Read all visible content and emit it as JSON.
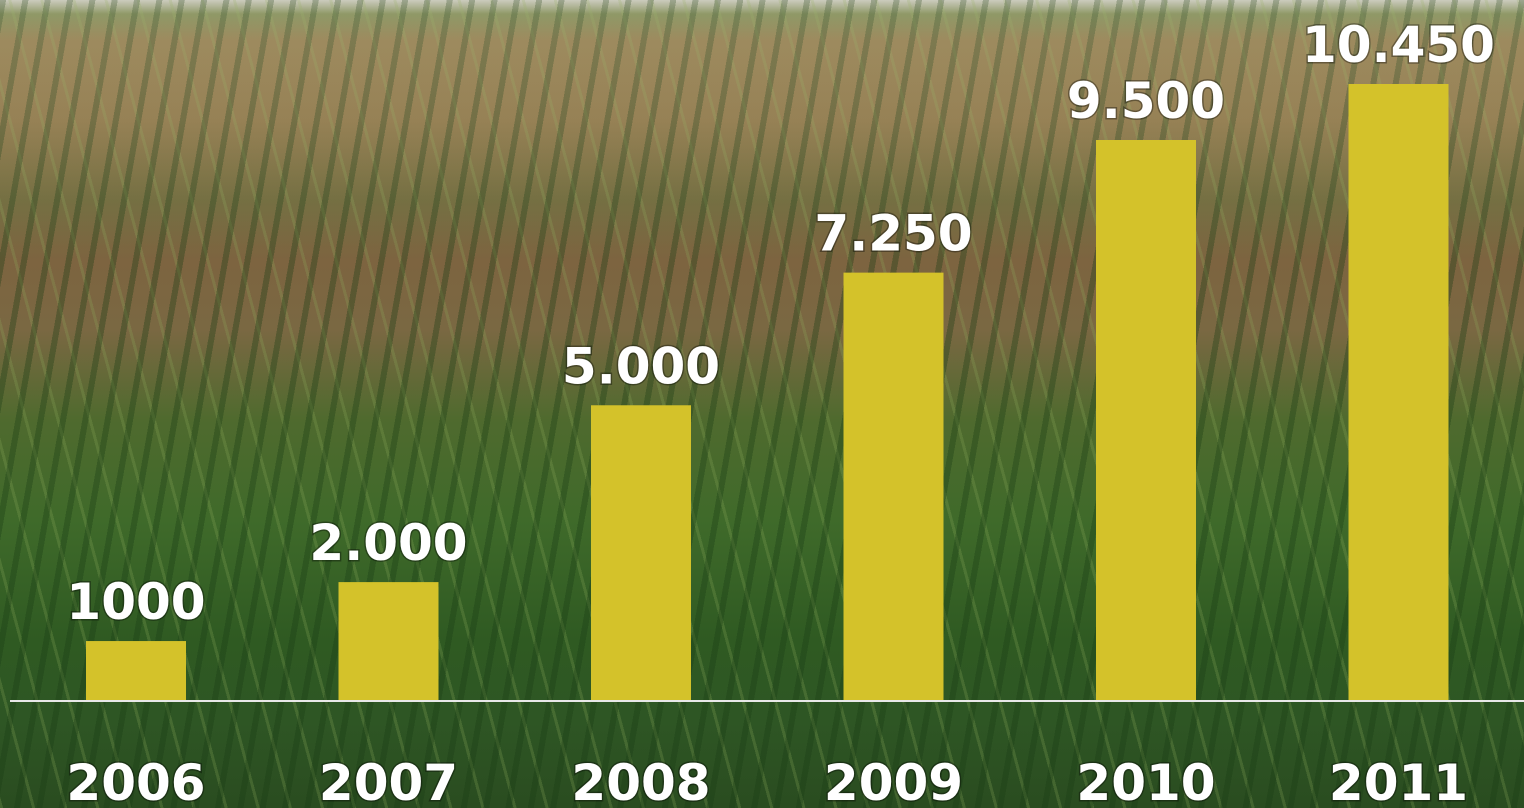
{
  "chart_data": {
    "type": "bar",
    "categories": [
      "2006",
      "2007",
      "2008",
      "2009",
      "2010",
      "2011"
    ],
    "values": [
      1000,
      2000,
      5000,
      7250,
      9500,
      10450
    ],
    "data_labels": [
      "1000",
      "2.000",
      "5.000",
      "7.250",
      "9.500",
      "10.450"
    ],
    "title": "",
    "xlabel": "",
    "ylabel": "",
    "ylim": [
      0,
      11000
    ],
    "grid": false,
    "legend": "none",
    "bar_color": "#d4c22a",
    "label_color": "#ffffff",
    "background": "cornfield-photo"
  }
}
